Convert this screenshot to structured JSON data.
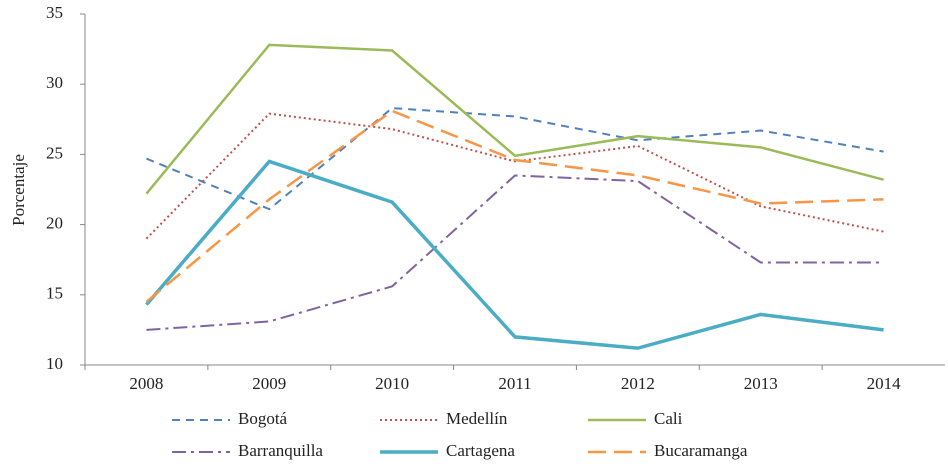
{
  "chart_data": {
    "type": "line",
    "y_label": "Porcentaje",
    "categories": [
      "2008",
      "2009",
      "2010",
      "2011",
      "2012",
      "2013",
      "2014"
    ],
    "ylim": [
      10,
      35
    ],
    "yticks": [
      10,
      15,
      20,
      25,
      30,
      35
    ],
    "legend": "bottom",
    "series": [
      {
        "name": "Bogotá",
        "color": "#4f81bd",
        "dash": "dashed",
        "values": [
          24.7,
          21.1,
          28.3,
          27.7,
          26.0,
          26.7,
          25.2
        ]
      },
      {
        "name": "Medellín",
        "color": "#c0504d",
        "dash": "dotted",
        "values": [
          19.0,
          27.9,
          26.8,
          24.5,
          25.6,
          21.3,
          19.5
        ]
      },
      {
        "name": "Cali",
        "color": "#9bbb59",
        "dash": "solid",
        "values": [
          22.2,
          32.8,
          32.4,
          24.9,
          26.3,
          25.5,
          23.2
        ]
      },
      {
        "name": "Barranquilla",
        "color": "#8064a2",
        "dash": "dashdot",
        "values": [
          12.5,
          13.1,
          15.6,
          23.5,
          23.1,
          17.3,
          17.3
        ]
      },
      {
        "name": "Cartagena",
        "color": "#4bacc6",
        "dash": "solid-thick",
        "values": [
          14.3,
          24.5,
          21.6,
          12.0,
          11.2,
          13.6,
          12.5
        ]
      },
      {
        "name": "Bucaramanga",
        "color": "#f79646",
        "dash": "longdash",
        "values": [
          14.5,
          21.8,
          28.1,
          24.6,
          23.5,
          21.5,
          21.8
        ]
      }
    ]
  }
}
